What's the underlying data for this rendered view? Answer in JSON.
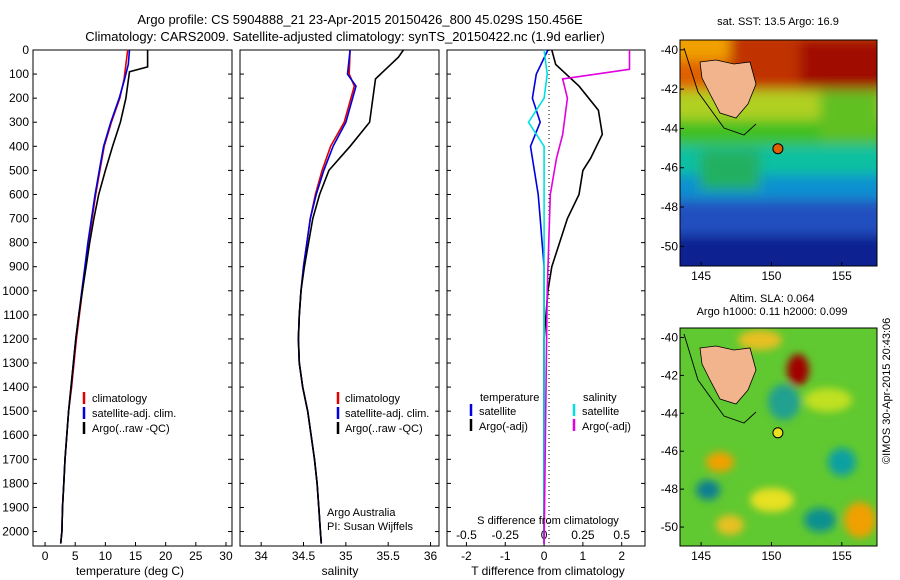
{
  "header": {
    "line1": "Argo profile: CS 5904888_21 23-Apr-2015 20150426_800 45.029S 150.456E",
    "line2": "Climatology: CARS2009. Satellite-adjusted climatology: synTS_20150422.nc (1.9d earlier)"
  },
  "footer": {
    "credit": "Argo Australia",
    "pi": "PI: Susan Wijffels",
    "stamp": "©IMOS 30-Apr-2015 20:43:06"
  },
  "colors": {
    "climatology": "#e00000",
    "satellite": "#0000e0",
    "argo": "#000000",
    "salinity_satellite": "#00e0e0",
    "salinity_argo": "#e000e0",
    "land": "#f2b48c"
  },
  "chart_data": [
    {
      "type": "line",
      "xlabel": "temperature (deg C)",
      "ylabel": "",
      "xlim": [
        -2,
        31
      ],
      "ylim": [
        2060,
        0
      ],
      "xticks": [
        0,
        5,
        10,
        15,
        20,
        25,
        30
      ],
      "yticks": [
        0,
        100,
        200,
        300,
        400,
        500,
        600,
        700,
        800,
        900,
        1000,
        1100,
        1200,
        1300,
        1400,
        1500,
        1600,
        1700,
        1800,
        1900,
        2000
      ],
      "legend": [
        "climatology",
        "satellite-adj. clim.",
        "Argo(..raw -QC)"
      ],
      "legend_position": "lower-center",
      "series": [
        {
          "name": "climatology",
          "x": [
            13.7,
            13.4,
            13.1,
            12.4,
            11.0,
            9.8,
            9.1,
            8.4,
            7.8,
            7.2,
            6.7,
            6.2,
            5.7,
            5.2,
            4.8,
            4.4,
            3.9,
            3.6,
            3.3,
            3.1,
            2.9,
            2.8,
            2.6
          ],
          "y": [
            0,
            60,
            120,
            200,
            300,
            400,
            500,
            600,
            700,
            800,
            900,
            1000,
            1100,
            1200,
            1300,
            1400,
            1500,
            1600,
            1700,
            1800,
            1900,
            2000,
            2050
          ]
        },
        {
          "name": "satellite-adj. clim.",
          "x": [
            14.0,
            13.8,
            13.2,
            12.3,
            10.9,
            9.7,
            9.0,
            8.3,
            7.7,
            7.1,
            6.6,
            6.1,
            5.6,
            5.1,
            4.7,
            4.3,
            3.9,
            3.6,
            3.3,
            3.1,
            2.9,
            2.8,
            2.6
          ],
          "y": [
            0,
            60,
            120,
            200,
            300,
            400,
            500,
            600,
            700,
            800,
            900,
            1000,
            1100,
            1200,
            1300,
            1400,
            1500,
            1600,
            1700,
            1800,
            1900,
            2000,
            2050
          ]
        },
        {
          "name": "Argo(..raw -QC)",
          "x": [
            17.0,
            17.0,
            14.0,
            13.4,
            12.5,
            11.2,
            10.0,
            8.9,
            8.1,
            7.4,
            6.8,
            6.2,
            5.6,
            5.1,
            4.7,
            4.3,
            3.9,
            3.6,
            3.3,
            3.1,
            2.9,
            2.8,
            2.6
          ],
          "y": [
            0,
            70,
            90,
            200,
            300,
            400,
            500,
            600,
            700,
            800,
            900,
            1000,
            1100,
            1200,
            1300,
            1400,
            1500,
            1600,
            1700,
            1800,
            1900,
            2000,
            2050
          ]
        }
      ]
    },
    {
      "type": "line",
      "xlabel": "salinity",
      "ylabel": "",
      "xlim": [
        33.75,
        36.1
      ],
      "ylim": [
        2060,
        0
      ],
      "xticks": [
        34,
        34.5,
        35,
        35.5,
        36
      ],
      "legend": [
        "climatology",
        "satellite-adj. clim.",
        "Argo(..raw -QC)"
      ],
      "legend_position": "lower-center",
      "series": [
        {
          "name": "climatology",
          "x": [
            35.05,
            35.04,
            35.1,
            34.98,
            34.82,
            34.72,
            34.64,
            34.58,
            34.54,
            34.5,
            34.47,
            34.45,
            34.44,
            34.45,
            34.49,
            34.55,
            34.59,
            34.63,
            34.66,
            34.68,
            34.7,
            34.71
          ],
          "y": [
            0,
            100,
            150,
            300,
            400,
            500,
            600,
            700,
            800,
            900,
            1000,
            1100,
            1200,
            1300,
            1400,
            1500,
            1600,
            1700,
            1800,
            1900,
            2000,
            2050
          ]
        },
        {
          "name": "satellite-adj. clim.",
          "x": [
            35.05,
            35.02,
            35.12,
            35.0,
            34.85,
            34.74,
            34.65,
            34.58,
            34.54,
            34.5,
            34.47,
            34.45,
            34.44,
            34.45,
            34.49,
            34.55,
            34.59,
            34.63,
            34.66,
            34.68,
            34.7,
            34.71
          ],
          "y": [
            0,
            100,
            150,
            300,
            400,
            500,
            600,
            700,
            800,
            900,
            1000,
            1100,
            1200,
            1300,
            1400,
            1500,
            1600,
            1700,
            1800,
            1900,
            2000,
            2050
          ]
        },
        {
          "name": "Argo(..raw -QC)",
          "x": [
            35.68,
            35.62,
            35.35,
            35.28,
            35.05,
            34.8,
            34.69,
            34.61,
            34.56,
            34.51,
            34.47,
            34.45,
            34.44,
            34.45,
            34.49,
            34.55,
            34.59,
            34.63,
            34.66,
            34.68,
            34.7,
            34.71
          ],
          "y": [
            0,
            30,
            120,
            300,
            400,
            500,
            600,
            700,
            800,
            900,
            1000,
            1100,
            1200,
            1300,
            1400,
            1500,
            1600,
            1700,
            1800,
            1900,
            2000,
            2050
          ]
        }
      ]
    },
    {
      "type": "line",
      "title_bottom": "S difference from climatology",
      "xlabel": "T difference from climatology",
      "xlim": [
        -2.5,
        2.6
      ],
      "ylim": [
        2060,
        0
      ],
      "xticks": [
        -2,
        -1,
        0,
        1,
        2
      ],
      "top_xticks": [
        -0.5,
        -0.25,
        0,
        0.25,
        0.5
      ],
      "legend": [
        "temperature",
        "satellite",
        "Argo(-adj)",
        "salinity",
        "satellite",
        "Argo(-adj)"
      ],
      "legend_position": "lower-center",
      "series": [
        {
          "name": "satellite",
          "x": [
            0.1,
            -0.2,
            -0.3,
            -0.1,
            -0.35,
            -0.3,
            -0.15,
            -0.1,
            -0.05,
            0.0,
            0.0,
            0.0,
            0.0,
            0.0,
            0.0,
            0.0,
            0.0
          ],
          "y": [
            0,
            100,
            200,
            300,
            400,
            450,
            600,
            700,
            800,
            900,
            1000,
            1100,
            1200,
            1400,
            1600,
            1800,
            2050
          ]
        },
        {
          "name": "Argo(-adj)",
          "x": [
            0.2,
            0.3,
            0.9,
            1.4,
            1.5,
            1.2,
            1.0,
            0.9,
            0.6,
            0.4,
            0.2,
            0.1,
            0.05,
            0.0,
            0.0,
            0.0,
            0.0
          ],
          "y": [
            0,
            60,
            150,
            250,
            350,
            450,
            500,
            600,
            700,
            800,
            900,
            1000,
            1100,
            1200,
            1400,
            1800,
            2050
          ]
        },
        {
          "name": "satellite",
          "x": [
            0.0,
            0.02,
            0.0,
            -0.1,
            0.0,
            0.0,
            0.0,
            0.0,
            0.0
          ],
          "y": [
            0,
            100,
            200,
            300,
            400,
            600,
            1000,
            1500,
            2050
          ]
        },
        {
          "name": "Argo(-adj)",
          "x": [
            0.55,
            0.55,
            0.12,
            0.15,
            0.12,
            0.08,
            0.04,
            0.02,
            0.0
          ],
          "y": [
            0,
            80,
            120,
            200,
            350,
            450,
            600,
            1000,
            2050
          ]
        }
      ]
    },
    {
      "type": "heatmap",
      "title": "sat. SST: 13.5 Argo: 16.9",
      "xlim": [
        143.5,
        157.5
      ],
      "ylim": [
        -51,
        -39.5
      ],
      "xticks": [
        145,
        150,
        155
      ],
      "yticks": [
        -40,
        -42,
        -44,
        -46,
        -48,
        -50
      ],
      "argo_position": [
        150.456,
        -45.029
      ]
    },
    {
      "type": "heatmap",
      "title": "Altim. SLA: 0.064",
      "subtitle": "Argo h1000: 0.11 h2000: 0.099",
      "xlim": [
        143.5,
        157.5
      ],
      "ylim": [
        -51,
        -39.5
      ],
      "xticks": [
        145,
        150,
        155
      ],
      "yticks": [
        -40,
        -42,
        -44,
        -46,
        -48,
        -50
      ],
      "argo_position": [
        150.456,
        -45.029
      ]
    }
  ]
}
